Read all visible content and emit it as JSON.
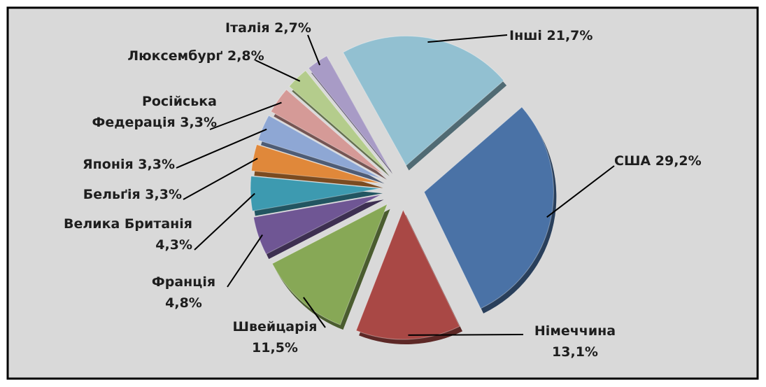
{
  "chart_data": {
    "type": "pie",
    "categories": [
      "США",
      "Німеччина",
      "Швейцарія",
      "Франція",
      "Велика Британія",
      "Бельґія",
      "Японія",
      "Російська Федерація",
      "Люксембурґ",
      "Італія",
      "Інші"
    ],
    "values": [
      29.2,
      13.1,
      11.5,
      4.8,
      4.3,
      3.3,
      3.3,
      3.3,
      2.8,
      2.7,
      21.7
    ],
    "value_labels": [
      "29,2%",
      "13,1%",
      "11,5%",
      "4,8%",
      "4,3%",
      "3,3%",
      "3,3%",
      "3,3%",
      "2,8%",
      "2,7%",
      "21,7%"
    ],
    "colors": [
      "#4a72a6",
      "#a94845",
      "#87a856",
      "#6f5694",
      "#3d9ab0",
      "#e0883a",
      "#8ea7d4",
      "#d59a97",
      "#b4cc8c",
      "#a89bc6",
      "#92c0d1"
    ]
  }
}
